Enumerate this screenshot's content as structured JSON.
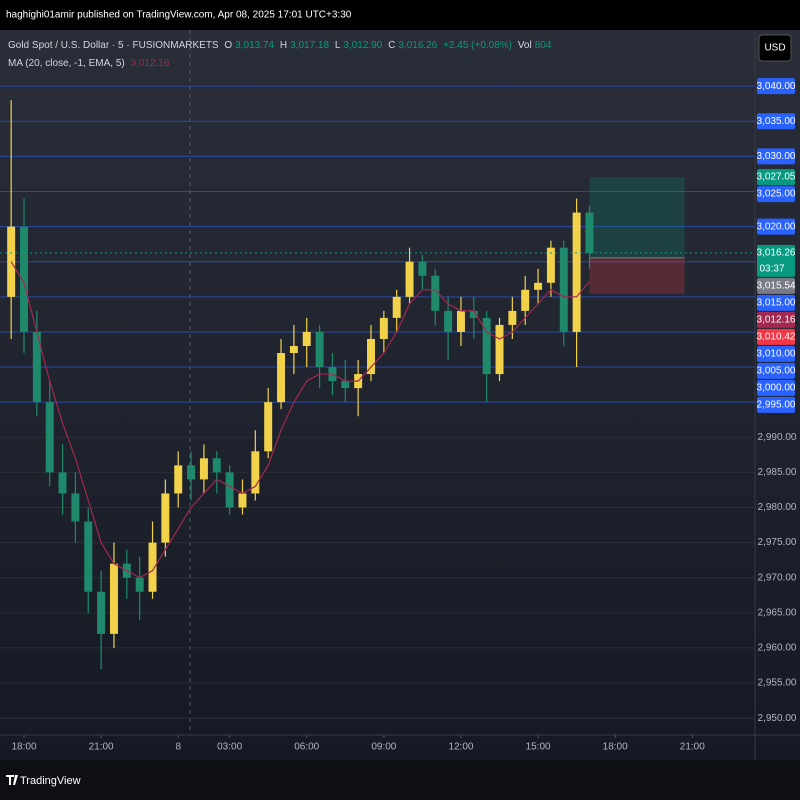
{
  "page": {
    "publisher": "haghighi01amir published on TradingView.com, Apr 08, 2025 17:01 UTC+3:30",
    "currency": "USD",
    "footer": "TradingView"
  },
  "legend": {
    "symbol": "Gold Spot / U.S. Dollar · 5 · FUSIONMARKETS",
    "fields": [
      "O",
      "H",
      "L",
      "C"
    ],
    "values": [
      "3,013.74",
      "3,017.18",
      "3,012.90",
      "3,016.26"
    ],
    "change": "+2.45 (+0.08%)",
    "volume_name": "Vol",
    "volume": "804"
  },
  "chart_data": {
    "type": "candlestick",
    "x": [
      -0.5,
      0,
      0.5,
      1,
      1.5,
      2,
      2.5,
      3,
      3.5,
      4,
      4.5,
      5,
      5.5,
      6,
      6.5,
      7,
      7.5,
      8,
      8.5,
      9,
      9.5,
      10,
      10.5,
      11,
      11.5,
      12,
      12.5,
      13,
      13.5,
      14,
      14.5,
      15,
      15.5,
      16,
      16.5,
      17,
      17.5,
      18,
      18.5,
      19,
      19.5,
      20,
      20.5,
      21,
      21.5,
      22
    ],
    "open": [
      3010,
      3020,
      3005,
      2995,
      2985,
      2982,
      2978,
      2968,
      2962,
      2972,
      2970,
      2968,
      2975,
      2982,
      2986,
      2984,
      2987,
      2985,
      2980,
      2982,
      2988,
      2995,
      3002,
      3003,
      3005,
      3000,
      2998,
      2997,
      2999,
      3004,
      3007,
      3010,
      3015,
      3013,
      3008,
      3005,
      3008,
      3007,
      2999,
      3006,
      3008,
      3011,
      3012,
      3017,
      3005,
      3022
    ],
    "high": [
      3038,
      3024,
      3008,
      2998,
      2989,
      2985,
      2980,
      2971,
      2975,
      2974,
      2973,
      2978,
      2984,
      2988,
      2988,
      2989,
      2988,
      2986,
      2984,
      2991,
      2997,
      3004,
      3006,
      3007,
      3006,
      3002,
      3001,
      3001,
      3006,
      3008,
      3011,
      3017,
      3016,
      3014,
      3010,
      3010,
      3010,
      3008,
      3007,
      3010,
      3013,
      3014,
      3018,
      3018,
      3024,
      3023
    ],
    "low": [
      3004,
      3002,
      2993,
      2983,
      2979,
      2975,
      2965,
      2957,
      2960,
      2967,
      2964,
      2967,
      2973,
      2980,
      2981,
      2982,
      2982,
      2979,
      2979,
      2981,
      2987,
      2994,
      2999,
      3000,
      2997,
      2996,
      2995,
      2993,
      2998,
      3002,
      3005,
      3009,
      3011,
      3006,
      3001,
      3003,
      3004,
      2995,
      2998,
      3004,
      3006,
      3009,
      3010,
      3003,
      3000,
      3014
    ],
    "close": [
      3020,
      3005,
      2995,
      2985,
      2982,
      2978,
      2968,
      2962,
      2972,
      2970,
      2968,
      2975,
      2982,
      2986,
      2984,
      2987,
      2985,
      2980,
      2982,
      2988,
      2995,
      3002,
      3003,
      3005,
      3000,
      2998,
      2997,
      2999,
      3004,
      3007,
      3010,
      3015,
      3013,
      3008,
      3005,
      3008,
      3007,
      2999,
      3006,
      3008,
      3011,
      3012,
      3017,
      3005,
      3022,
      3016.26
    ],
    "up_color": "#f2d24b",
    "down_color": "#1f8a6b",
    "overlays": [
      {
        "name": "MA (20, close, -1, EMA, 5)",
        "color": "#a3284f",
        "values": [
          3015,
          3012,
          3005,
          2998,
          2992,
          2987,
          2981,
          2975,
          2972,
          2971,
          2970,
          2971,
          2974,
          2977,
          2980,
          2982,
          2984,
          2983,
          2982,
          2983,
          2986,
          2991,
          2995,
          2998,
          2999,
          2999,
          2998,
          2998,
          3000,
          3002,
          3005,
          3009,
          3011,
          3011,
          3009,
          3008,
          3008,
          3005,
          3004,
          3005,
          3007,
          3009,
          3011,
          3010,
          3010,
          3012.16
        ],
        "last_label": "3,012.16"
      }
    ],
    "last": {
      "value": 3016.26,
      "label": "3,016.26",
      "countdown": "03:37",
      "color": "#089981"
    },
    "position": {
      "x_range": [
        22.0,
        25.7
      ],
      "levels": [
        3027.05,
        3015.54,
        3010.42
      ],
      "value_labels": [
        "3,027.05",
        "3,015.54",
        "3,010.42"
      ],
      "colors": [
        "#089981",
        "#787b86",
        "#f23645"
      ]
    },
    "hlines": [
      3040,
      3035,
      3030,
      3025,
      3020,
      3015,
      3010,
      3005,
      3000,
      2995
    ],
    "hline_color": "#2962ff",
    "xlim": [
      -0.934,
      28.44
    ],
    "ylim": [
      2947.6,
      3048
    ],
    "xticks": [
      {
        "value": 0,
        "label": "18:00"
      },
      {
        "value": 3,
        "label": "21:00"
      },
      {
        "value": 6,
        "label": "8"
      },
      {
        "value": 8,
        "label": "03:00"
      },
      {
        "value": 11,
        "label": "06:00"
      },
      {
        "value": 14,
        "label": "09:00"
      },
      {
        "value": 17,
        "label": "12:00"
      },
      {
        "value": 20,
        "label": "15:00"
      },
      {
        "value": 23,
        "label": "18:00"
      },
      {
        "value": 26,
        "label": "21:00"
      }
    ],
    "yticks": [
      {
        "value": 3040,
        "label": "3,040.00"
      },
      {
        "value": 3035,
        "label": "3,035.00"
      },
      {
        "value": 3030,
        "label": "3,030.00"
      },
      {
        "value": 3025,
        "label": "3,025.00"
      },
      {
        "value": 3020,
        "label": "3,020.00"
      },
      {
        "value": 3015,
        "label": "3,015.00"
      },
      {
        "value": 3010,
        "label": "3,010.00"
      },
      {
        "value": 3005,
        "label": "3,005.00"
      },
      {
        "value": 3000,
        "label": "3,000.00"
      },
      {
        "value": 2995,
        "label": "2,995.00"
      },
      {
        "value": 2990,
        "label": "2,990.00"
      },
      {
        "value": 2985,
        "label": "2,985.00"
      },
      {
        "value": 2980,
        "label": "2,980.00"
      },
      {
        "value": 2975,
        "label": "2,975.00"
      },
      {
        "value": 2970,
        "label": "2,970.00"
      },
      {
        "value": 2965,
        "label": "2,965.00"
      },
      {
        "value": 2960,
        "label": "2,960.00"
      },
      {
        "value": 2955,
        "label": "2,955.00"
      },
      {
        "value": 2950,
        "label": "2,950.00"
      }
    ],
    "grid": true
  }
}
